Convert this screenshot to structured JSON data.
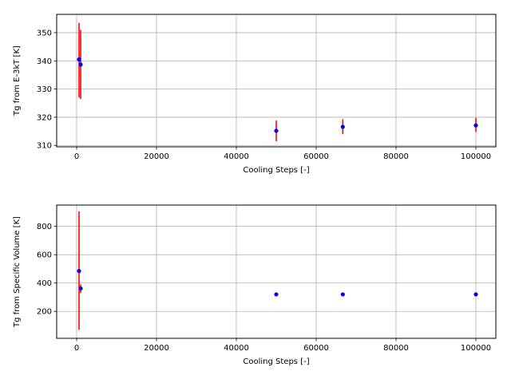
{
  "chart_data": [
    {
      "type": "scatter",
      "title": "",
      "xlabel": "Cooling Steps [-]",
      "ylabel": "Tg from E-3kT [K]",
      "xlim": [
        -5000,
        105000
      ],
      "ylim": [
        309.5,
        356.5
      ],
      "xticks": [
        0,
        20000,
        40000,
        60000,
        80000,
        100000
      ],
      "yticks": [
        310,
        320,
        330,
        340,
        350
      ],
      "grid": true,
      "point_color": "#0000ff",
      "errorbar_color": "#ff0000",
      "points": [
        {
          "x": 600,
          "y": 340.5,
          "err_low": 327.0,
          "err_high": 353.5
        },
        {
          "x": 1000,
          "y": 338.7,
          "err_low": 326.5,
          "err_high": 351.0
        },
        {
          "x": 50000,
          "y": 315.2,
          "err_low": 311.5,
          "err_high": 318.8
        },
        {
          "x": 66667,
          "y": 316.6,
          "err_low": 314.0,
          "err_high": 319.3
        },
        {
          "x": 100000,
          "y": 317.1,
          "err_low": 314.8,
          "err_high": 319.8
        }
      ]
    },
    {
      "type": "scatter",
      "title": "",
      "xlabel": "Cooling Steps [-]",
      "ylabel": "Tg from Specific Volume [K]",
      "xlim": [
        -5000,
        105000
      ],
      "ylim": [
        10,
        950
      ],
      "xticks": [
        0,
        20000,
        40000,
        60000,
        80000,
        100000
      ],
      "yticks": [
        200,
        400,
        600,
        800
      ],
      "grid": true,
      "point_color": "#0000ff",
      "errorbar_color": "#ff0000",
      "points": [
        {
          "x": 600,
          "y": 485,
          "err_low": 70,
          "err_high": 905
        },
        {
          "x": 1000,
          "y": 362,
          "err_low": 330,
          "err_high": 390
        },
        {
          "x": 50000,
          "y": 320,
          "err_low": 315,
          "err_high": 325
        },
        {
          "x": 66667,
          "y": 320,
          "err_low": 315,
          "err_high": 325
        },
        {
          "x": 100000,
          "y": 320,
          "err_low": 315,
          "err_high": 325
        }
      ]
    }
  ]
}
